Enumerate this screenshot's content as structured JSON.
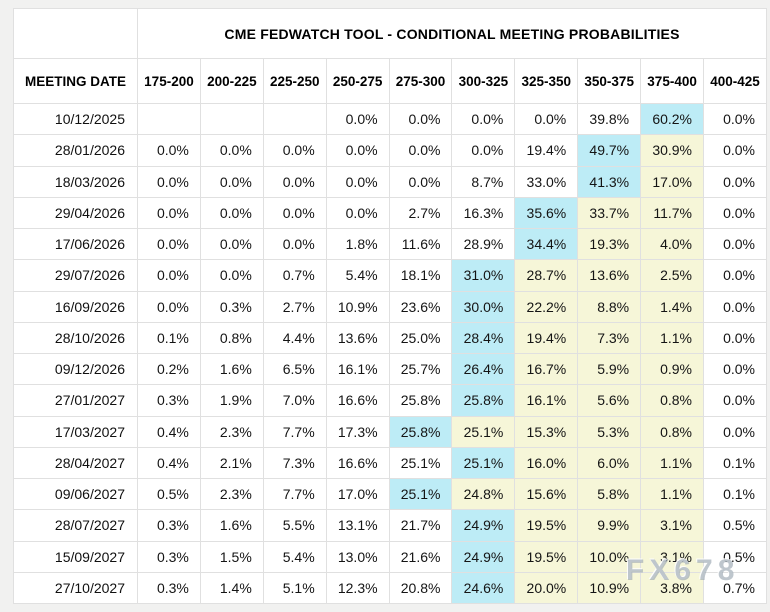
{
  "title": "CME FEDWATCH TOOL - CONDITIONAL MEETING PROBABILITIES",
  "watermark": "FX678",
  "colors": {
    "max_probability_highlight": "#bdecf6",
    "tail_probability_highlight": "#f6f6d8",
    "page_background": "#f1f1f0",
    "cell_border": "#e0e0e0"
  },
  "table": {
    "date_header": "MEETING DATE",
    "rate_headers": [
      "175-200",
      "200-225",
      "225-250",
      "250-275",
      "275-300",
      "300-325",
      "325-350",
      "350-375",
      "375-400",
      "400-425"
    ],
    "rows": [
      {
        "date": "10/12/2025",
        "values": [
          "",
          "",
          "",
          "0.0%",
          "0.0%",
          "0.0%",
          "0.0%",
          "39.8%",
          "60.2%",
          "0.0%"
        ],
        "highlights": [
          "",
          "",
          "",
          "",
          "",
          "",
          "",
          "",
          "blue",
          ""
        ]
      },
      {
        "date": "28/01/2026",
        "values": [
          "0.0%",
          "0.0%",
          "0.0%",
          "0.0%",
          "0.0%",
          "0.0%",
          "19.4%",
          "49.7%",
          "30.9%",
          "0.0%"
        ],
        "highlights": [
          "",
          "",
          "",
          "",
          "",
          "",
          "",
          "blue",
          "yellow",
          ""
        ]
      },
      {
        "date": "18/03/2026",
        "values": [
          "0.0%",
          "0.0%",
          "0.0%",
          "0.0%",
          "0.0%",
          "8.7%",
          "33.0%",
          "41.3%",
          "17.0%",
          "0.0%"
        ],
        "highlights": [
          "",
          "",
          "",
          "",
          "",
          "",
          "",
          "blue",
          "yellow",
          ""
        ]
      },
      {
        "date": "29/04/2026",
        "values": [
          "0.0%",
          "0.0%",
          "0.0%",
          "0.0%",
          "2.7%",
          "16.3%",
          "35.6%",
          "33.7%",
          "11.7%",
          "0.0%"
        ],
        "highlights": [
          "",
          "",
          "",
          "",
          "",
          "",
          "blue",
          "yellow",
          "yellow",
          ""
        ]
      },
      {
        "date": "17/06/2026",
        "values": [
          "0.0%",
          "0.0%",
          "0.0%",
          "1.8%",
          "11.6%",
          "28.9%",
          "34.4%",
          "19.3%",
          "4.0%",
          "0.0%"
        ],
        "highlights": [
          "",
          "",
          "",
          "",
          "",
          "",
          "blue",
          "yellow",
          "yellow",
          ""
        ]
      },
      {
        "date": "29/07/2026",
        "values": [
          "0.0%",
          "0.0%",
          "0.7%",
          "5.4%",
          "18.1%",
          "31.0%",
          "28.7%",
          "13.6%",
          "2.5%",
          "0.0%"
        ],
        "highlights": [
          "",
          "",
          "",
          "",
          "",
          "blue",
          "yellow",
          "yellow",
          "yellow",
          ""
        ]
      },
      {
        "date": "16/09/2026",
        "values": [
          "0.0%",
          "0.3%",
          "2.7%",
          "10.9%",
          "23.6%",
          "30.0%",
          "22.2%",
          "8.8%",
          "1.4%",
          "0.0%"
        ],
        "highlights": [
          "",
          "",
          "",
          "",
          "",
          "blue",
          "yellow",
          "yellow",
          "yellow",
          ""
        ]
      },
      {
        "date": "28/10/2026",
        "values": [
          "0.1%",
          "0.8%",
          "4.4%",
          "13.6%",
          "25.0%",
          "28.4%",
          "19.4%",
          "7.3%",
          "1.1%",
          "0.0%"
        ],
        "highlights": [
          "",
          "",
          "",
          "",
          "",
          "blue",
          "yellow",
          "yellow",
          "yellow",
          ""
        ]
      },
      {
        "date": "09/12/2026",
        "values": [
          "0.2%",
          "1.6%",
          "6.5%",
          "16.1%",
          "25.7%",
          "26.4%",
          "16.7%",
          "5.9%",
          "0.9%",
          "0.0%"
        ],
        "highlights": [
          "",
          "",
          "",
          "",
          "",
          "blue",
          "yellow",
          "yellow",
          "yellow",
          ""
        ]
      },
      {
        "date": "27/01/2027",
        "values": [
          "0.3%",
          "1.9%",
          "7.0%",
          "16.6%",
          "25.8%",
          "25.8%",
          "16.1%",
          "5.6%",
          "0.8%",
          "0.0%"
        ],
        "highlights": [
          "",
          "",
          "",
          "",
          "",
          "blue",
          "yellow",
          "yellow",
          "yellow",
          ""
        ]
      },
      {
        "date": "17/03/2027",
        "values": [
          "0.4%",
          "2.3%",
          "7.7%",
          "17.3%",
          "25.8%",
          "25.1%",
          "15.3%",
          "5.3%",
          "0.8%",
          "0.0%"
        ],
        "highlights": [
          "",
          "",
          "",
          "",
          "blue",
          "yellow",
          "yellow",
          "yellow",
          "yellow",
          ""
        ]
      },
      {
        "date": "28/04/2027",
        "values": [
          "0.4%",
          "2.1%",
          "7.3%",
          "16.6%",
          "25.1%",
          "25.1%",
          "16.0%",
          "6.0%",
          "1.1%",
          "0.1%"
        ],
        "highlights": [
          "",
          "",
          "",
          "",
          "",
          "blue",
          "yellow",
          "yellow",
          "yellow",
          ""
        ]
      },
      {
        "date": "09/06/2027",
        "values": [
          "0.5%",
          "2.3%",
          "7.7%",
          "17.0%",
          "25.1%",
          "24.8%",
          "15.6%",
          "5.8%",
          "1.1%",
          "0.1%"
        ],
        "highlights": [
          "",
          "",
          "",
          "",
          "blue",
          "yellow",
          "yellow",
          "yellow",
          "yellow",
          ""
        ]
      },
      {
        "date": "28/07/2027",
        "values": [
          "0.3%",
          "1.6%",
          "5.5%",
          "13.1%",
          "21.7%",
          "24.9%",
          "19.5%",
          "9.9%",
          "3.1%",
          "0.5%"
        ],
        "highlights": [
          "",
          "",
          "",
          "",
          "",
          "blue",
          "yellow",
          "yellow",
          "yellow",
          ""
        ]
      },
      {
        "date": "15/09/2027",
        "values": [
          "0.3%",
          "1.5%",
          "5.4%",
          "13.0%",
          "21.6%",
          "24.9%",
          "19.5%",
          "10.0%",
          "3.1%",
          "0.5%"
        ],
        "highlights": [
          "",
          "",
          "",
          "",
          "",
          "blue",
          "yellow",
          "yellow",
          "yellow",
          ""
        ]
      },
      {
        "date": "27/10/2027",
        "values": [
          "0.3%",
          "1.4%",
          "5.1%",
          "12.3%",
          "20.8%",
          "24.6%",
          "20.0%",
          "10.9%",
          "3.8%",
          "0.7%"
        ],
        "highlights": [
          "",
          "",
          "",
          "",
          "",
          "blue",
          "yellow",
          "yellow",
          "yellow",
          ""
        ]
      }
    ]
  }
}
